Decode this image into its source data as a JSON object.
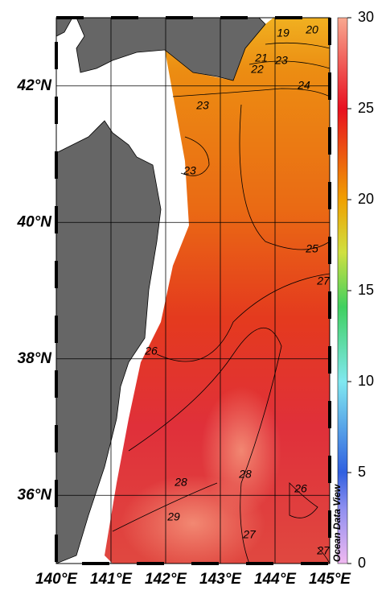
{
  "map": {
    "xlim": [
      140,
      145
    ],
    "ylim": [
      35,
      43
    ],
    "xticks": [
      {
        "value": 140,
        "label": "140°E"
      },
      {
        "value": 141,
        "label": "141°E"
      },
      {
        "value": 142,
        "label": "142°E"
      },
      {
        "value": 143,
        "label": "143°E"
      },
      {
        "value": 144,
        "label": "144°E"
      },
      {
        "value": 145,
        "label": "145°E"
      }
    ],
    "yticks": [
      {
        "value": 36,
        "label": "36°N"
      },
      {
        "value": 38,
        "label": "38°N"
      },
      {
        "value": 40,
        "label": "40°N"
      },
      {
        "value": 42,
        "label": "42°N"
      }
    ],
    "colorbar": {
      "lim": [
        0,
        30
      ],
      "ticks": [
        0,
        5,
        10,
        15,
        20,
        25,
        30
      ]
    },
    "watermark": "Ocean Data View",
    "contour_labels": [
      "19",
      "20",
      "21",
      "22",
      "23",
      "24",
      "23",
      "23",
      "25",
      "27",
      "26",
      "28",
      "28",
      "29",
      "27",
      "26",
      "27"
    ]
  }
}
